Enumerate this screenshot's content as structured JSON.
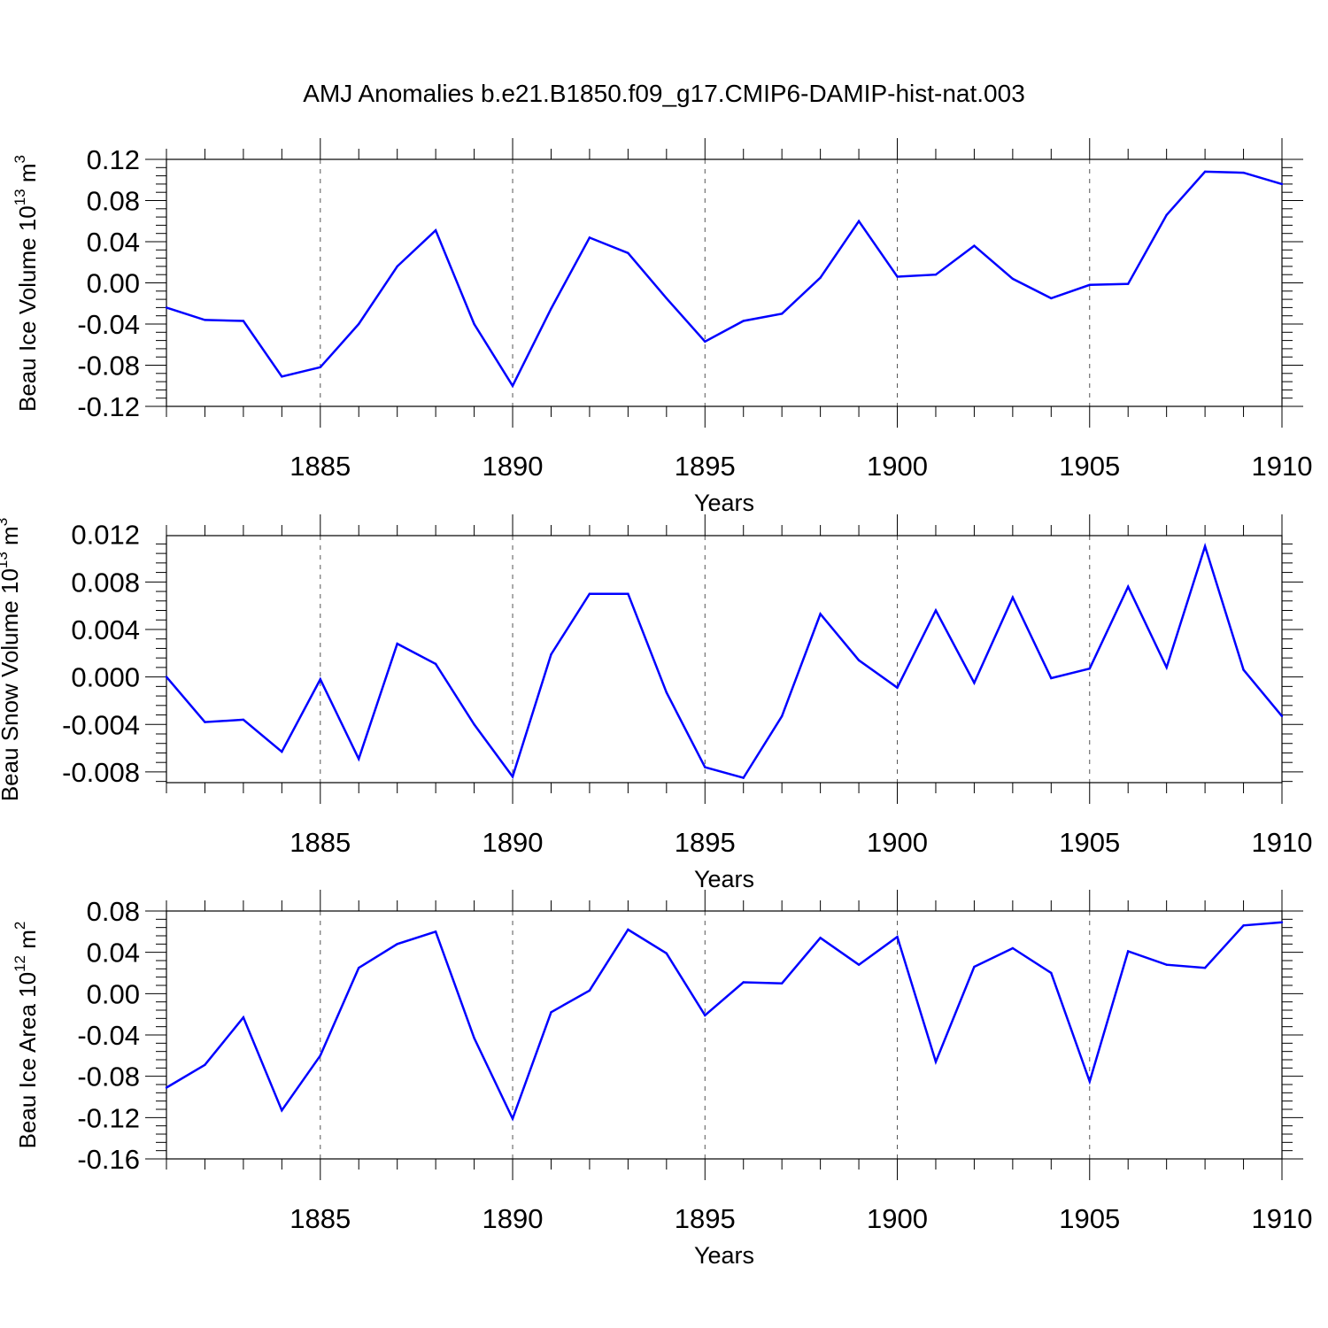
{
  "title": "AMJ Anomalies b.e21.B1850.f09_g17.CMIP6-DAMIP-hist-nat.003",
  "line_color": "#0000ff",
  "chart_data": [
    {
      "type": "line",
      "ylabel": "Beau Ice Volume 10",
      "ylabel_exp": "13",
      "ylabel_unit": " m",
      "ylabel_unit_exp": "3",
      "xlabel": "Years",
      "xlim": [
        1881,
        1910
      ],
      "ylim": [
        -0.12,
        0.12
      ],
      "yticks": [
        "0.12",
        "0.08",
        "0.04",
        "0.00",
        "-0.04",
        "-0.08",
        "-0.12"
      ],
      "ytick_values": [
        0.12,
        0.08,
        0.04,
        0.0,
        -0.04,
        -0.08,
        -0.12
      ],
      "xticks": [
        "1885",
        "1890",
        "1895",
        "1900",
        "1905",
        "1910"
      ],
      "xtick_values": [
        1885,
        1890,
        1895,
        1900,
        1905,
        1910
      ],
      "x": [
        1881,
        1882,
        1883,
        1884,
        1885,
        1886,
        1887,
        1888,
        1889,
        1890,
        1891,
        1892,
        1893,
        1894,
        1895,
        1896,
        1897,
        1898,
        1899,
        1900,
        1901,
        1902,
        1903,
        1904,
        1905,
        1906,
        1907,
        1908,
        1909,
        1910
      ],
      "values": [
        -0.024,
        -0.036,
        -0.037,
        -0.091,
        -0.082,
        -0.04,
        0.016,
        0.051,
        -0.04,
        -0.1,
        -0.025,
        0.044,
        0.029,
        -0.015,
        -0.057,
        -0.037,
        -0.03,
        0.005,
        0.06,
        0.006,
        0.008,
        0.036,
        0.004,
        -0.015,
        -0.002,
        -0.001,
        0.066,
        0.108,
        0.107,
        0.096
      ]
    },
    {
      "type": "line",
      "ylabel": "Beau Snow Volume 10",
      "ylabel_exp": "13",
      "ylabel_unit": " m",
      "ylabel_unit_exp": "3",
      "xlabel": "Years",
      "xlim": [
        1881,
        1910
      ],
      "ylim": [
        -0.0089,
        0.0119
      ],
      "yticks": [
        "0.012",
        "0.008",
        "0.004",
        "0.000",
        "-0.004",
        "-0.008"
      ],
      "ytick_values": [
        0.012,
        0.008,
        0.004,
        0.0,
        -0.004,
        -0.008
      ],
      "xticks": [
        "1885",
        "1890",
        "1895",
        "1900",
        "1905",
        "1910"
      ],
      "xtick_values": [
        1885,
        1890,
        1895,
        1900,
        1905,
        1910
      ],
      "x": [
        1881,
        1882,
        1883,
        1884,
        1885,
        1886,
        1887,
        1888,
        1889,
        1890,
        1891,
        1892,
        1893,
        1894,
        1895,
        1896,
        1897,
        1898,
        1899,
        1900,
        1901,
        1902,
        1903,
        1904,
        1905,
        1906,
        1907,
        1908,
        1909,
        1910
      ],
      "values": [
        0.0,
        -0.0038,
        -0.0036,
        -0.0063,
        -0.0002,
        -0.0069,
        0.0028,
        0.0011,
        -0.004,
        -0.0084,
        0.0019,
        0.007,
        0.007,
        -0.0013,
        -0.0076,
        -0.0085,
        -0.0033,
        0.0053,
        0.0014,
        -0.0009,
        0.0056,
        -0.0005,
        0.0067,
        -0.0001,
        0.0007,
        0.0076,
        0.0008,
        0.011,
        0.0006,
        -0.0033
      ]
    },
    {
      "type": "line",
      "ylabel": "Beau Ice Area 10",
      "ylabel_exp": "12",
      "ylabel_unit": " m",
      "ylabel_unit_exp": "2",
      "xlabel": "Years",
      "xlim": [
        1881,
        1910
      ],
      "ylim": [
        -0.16,
        0.08
      ],
      "yticks": [
        "0.08",
        "0.04",
        "0.00",
        "-0.04",
        "-0.08",
        "-0.12",
        "-0.16"
      ],
      "ytick_values": [
        0.08,
        0.04,
        0.0,
        -0.04,
        -0.08,
        -0.12,
        -0.16
      ],
      "xticks": [
        "1885",
        "1890",
        "1895",
        "1900",
        "1905",
        "1910"
      ],
      "xtick_values": [
        1885,
        1890,
        1895,
        1900,
        1905,
        1910
      ],
      "x": [
        1881,
        1882,
        1883,
        1884,
        1885,
        1886,
        1887,
        1888,
        1889,
        1890,
        1891,
        1892,
        1893,
        1894,
        1895,
        1896,
        1897,
        1898,
        1899,
        1900,
        1901,
        1902,
        1903,
        1904,
        1905,
        1906,
        1907,
        1908,
        1909,
        1910
      ],
      "values": [
        -0.091,
        -0.069,
        -0.023,
        -0.113,
        -0.06,
        0.025,
        0.048,
        0.06,
        -0.043,
        -0.121,
        -0.018,
        0.003,
        0.062,
        0.039,
        -0.021,
        0.011,
        0.01,
        0.054,
        0.028,
        0.055,
        -0.066,
        0.026,
        0.044,
        0.02,
        -0.085,
        0.041,
        0.028,
        0.025,
        0.066,
        0.069
      ]
    }
  ]
}
